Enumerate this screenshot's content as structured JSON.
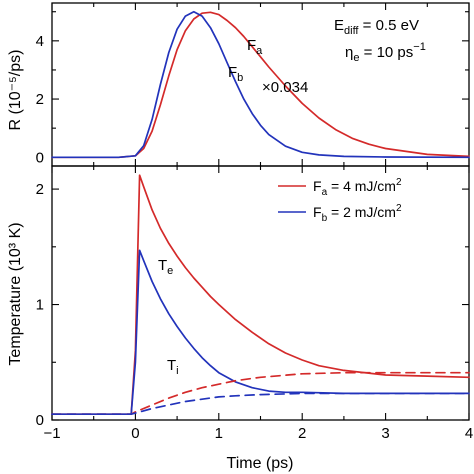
{
  "chart_data": [
    {
      "type": "line",
      "panel": "top",
      "ylabel": "R (10⁻⁵/ps)",
      "xlim": [
        -1,
        4
      ],
      "ylim": [
        -0.3,
        5.3
      ],
      "xticks": [
        -1,
        0,
        1,
        2,
        3,
        4
      ],
      "yticks": [
        0,
        2,
        4
      ],
      "series": [
        {
          "name": "Fa",
          "color": "#d42a2a",
          "x": [
            -1,
            -0.2,
            0,
            0.1,
            0.2,
            0.3,
            0.4,
            0.5,
            0.6,
            0.7,
            0.8,
            0.9,
            1.0,
            1.1,
            1.2,
            1.3,
            1.4,
            1.5,
            1.6,
            1.8,
            2.0,
            2.2,
            2.4,
            2.6,
            2.8,
            3.0,
            3.5,
            4.0
          ],
          "y": [
            0,
            0,
            0.05,
            0.3,
            0.9,
            1.8,
            2.8,
            3.7,
            4.35,
            4.75,
            4.95,
            4.98,
            4.9,
            4.7,
            4.45,
            4.15,
            3.8,
            3.45,
            3.1,
            2.45,
            1.85,
            1.35,
            0.95,
            0.65,
            0.45,
            0.3,
            0.1,
            0.03
          ]
        },
        {
          "name": "Fb",
          "color": "#2233bb",
          "x": [
            -1,
            -0.2,
            0,
            0.1,
            0.2,
            0.3,
            0.4,
            0.5,
            0.6,
            0.7,
            0.8,
            0.9,
            1.0,
            1.1,
            1.2,
            1.3,
            1.4,
            1.5,
            1.6,
            1.8,
            2.0,
            2.2,
            2.5,
            3.0,
            4.0
          ],
          "y": [
            0,
            0,
            0.05,
            0.4,
            1.3,
            2.5,
            3.6,
            4.4,
            4.85,
            5.0,
            4.85,
            4.45,
            3.9,
            3.25,
            2.6,
            2.0,
            1.5,
            1.1,
            0.78,
            0.38,
            0.17,
            0.08,
            0.03,
            0.01,
            0
          ]
        }
      ],
      "annotations": {
        "ediff_label": "E",
        "ediff_sub": "diff",
        "ediff_value": " = 0.5 eV",
        "eta_label": "η",
        "eta_sub": "e",
        "eta_value": " = 10 ps",
        "eta_exp": "−1",
        "fa_label": "F",
        "fa_sub": "a",
        "fb_label": "F",
        "fb_sub": "b",
        "scale_note": "×0.034"
      }
    },
    {
      "type": "line",
      "panel": "bottom",
      "xlabel": "Time (ps)",
      "ylabel": "Temperature (10³ K)",
      "xlim": [
        -1,
        4
      ],
      "ylim": [
        0,
        2.2
      ],
      "xticks": [
        -1,
        0,
        1,
        2,
        3,
        4
      ],
      "yticks": [
        0,
        1,
        2
      ],
      "legend": {
        "position": "top-right",
        "entries": [
          {
            "label": "F",
            "sub": "a",
            "value": " = 4 mJ/cm",
            "sup": "2",
            "color": "#d42a2a"
          },
          {
            "label": "F",
            "sub": "b",
            "value": " = 2 mJ/cm",
            "sup": "2",
            "color": "#2233bb"
          }
        ]
      },
      "series": [
        {
          "name": "Te (Fa)",
          "color": "#d42a2a",
          "style": "solid",
          "x": [
            -1,
            -0.05,
            0,
            0.05,
            0.1,
            0.2,
            0.3,
            0.4,
            0.5,
            0.6,
            0.7,
            0.8,
            0.9,
            1.0,
            1.2,
            1.4,
            1.6,
            1.8,
            2.0,
            2.2,
            2.5,
            3.0,
            3.5,
            4.0
          ],
          "y": [
            0.05,
            0.05,
            0.6,
            2.12,
            2.02,
            1.82,
            1.66,
            1.53,
            1.42,
            1.32,
            1.23,
            1.15,
            1.07,
            1.0,
            0.87,
            0.76,
            0.66,
            0.58,
            0.52,
            0.47,
            0.43,
            0.39,
            0.38,
            0.37
          ]
        },
        {
          "name": "Te (Fb)",
          "color": "#2233bb",
          "style": "solid",
          "x": [
            -1,
            -0.05,
            0,
            0.05,
            0.1,
            0.2,
            0.3,
            0.4,
            0.5,
            0.6,
            0.7,
            0.8,
            0.9,
            1.0,
            1.2,
            1.4,
            1.6,
            1.8,
            2.0,
            2.5,
            3.0,
            4.0
          ],
          "y": [
            0.05,
            0.05,
            0.5,
            1.47,
            1.38,
            1.2,
            1.05,
            0.92,
            0.81,
            0.71,
            0.62,
            0.54,
            0.47,
            0.41,
            0.33,
            0.28,
            0.25,
            0.24,
            0.24,
            0.23,
            0.23,
            0.23
          ]
        },
        {
          "name": "Ti (Fa)",
          "color": "#d42a2a",
          "style": "dashed",
          "x": [
            -1,
            -0.05,
            0,
            0.2,
            0.4,
            0.6,
            0.8,
            1.0,
            1.2,
            1.5,
            2.0,
            2.5,
            3.0,
            3.5,
            4.0
          ],
          "y": [
            0.05,
            0.05,
            0.07,
            0.13,
            0.19,
            0.24,
            0.28,
            0.31,
            0.34,
            0.37,
            0.4,
            0.41,
            0.41,
            0.41,
            0.41
          ]
        },
        {
          "name": "Ti (Fb)",
          "color": "#2233bb",
          "style": "dashed",
          "x": [
            -1,
            -0.05,
            0,
            0.2,
            0.4,
            0.6,
            0.8,
            1.0,
            1.2,
            1.5,
            2.0,
            2.5,
            3.0,
            3.5,
            4.0
          ],
          "y": [
            0.05,
            0.05,
            0.06,
            0.1,
            0.13,
            0.16,
            0.18,
            0.2,
            0.21,
            0.22,
            0.23,
            0.23,
            0.23,
            0.23,
            0.23
          ]
        }
      ],
      "annotations": {
        "te_label": "T",
        "te_sub": "e",
        "ti_label": "T",
        "ti_sub": "i"
      }
    }
  ]
}
